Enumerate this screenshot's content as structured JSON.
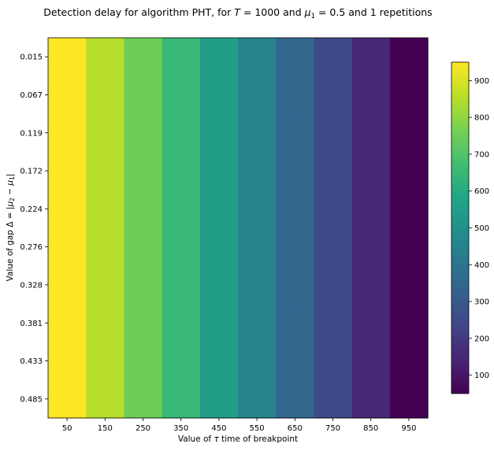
{
  "chart_data": {
    "type": "heatmap",
    "title": "Detection delay for algorithm PHT, for T = 1000 and μ1 = 0.5 and 1 repetitions",
    "title_parts": {
      "prefix": "Detection delay for algorithm PHT, for ",
      "T_var": "T",
      "T_eq": " = 1000 and ",
      "mu_var": "μ",
      "mu_sub": "1",
      "mu_eq": " = 0.5 and 1 repetitions"
    },
    "xlabel": "Value of τ time of breakpoint",
    "xlabel_parts": {
      "prefix": "Value of ",
      "tau": "τ",
      "suffix": " time of breakpoint"
    },
    "ylabel": "Value of gap Δ = |μ2 − μ1|",
    "ylabel_parts": {
      "prefix": "Value of gap Δ = |",
      "mu": "μ",
      "sub2": "2",
      "minus": " − ",
      "sub1": "1",
      "suffix": "|"
    },
    "x_ticks": [
      "50",
      "150",
      "250",
      "350",
      "450",
      "550",
      "650",
      "750",
      "850",
      "950"
    ],
    "y_ticks": [
      "0.015",
      "0.067",
      "0.119",
      "0.172",
      "0.224",
      "0.276",
      "0.328",
      "0.381",
      "0.433",
      "0.485"
    ],
    "column_values": [
      950,
      850,
      750,
      650,
      550,
      450,
      350,
      250,
      150,
      50
    ],
    "colormap": "viridis",
    "colorbar": {
      "range": [
        50,
        950
      ],
      "ticks": [
        "100",
        "200",
        "300",
        "400",
        "500",
        "600",
        "700",
        "800",
        "900"
      ],
      "tick_values": [
        100,
        200,
        300,
        400,
        500,
        600,
        700,
        800,
        900
      ],
      "placement": "right"
    },
    "grid": false
  }
}
